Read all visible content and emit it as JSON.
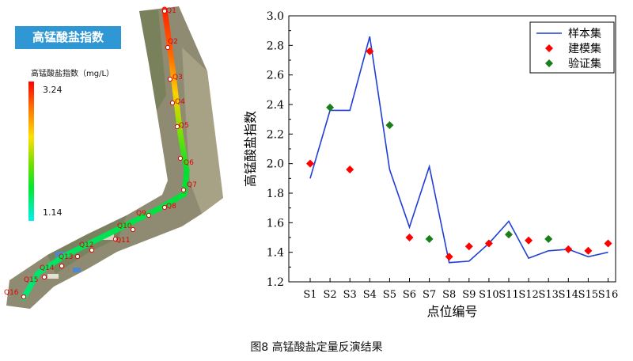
{
  "figure": {
    "caption": "图8  高锰酸盐定量反演结果"
  },
  "map": {
    "title": "高锰酸盐指数",
    "legend_title": "高锰酸盐指数（mg/L）",
    "legend_max": "3.24",
    "legend_min": "1.14",
    "points": [
      "Q1",
      "Q2",
      "Q3",
      "Q4",
      "Q5",
      "Q6",
      "Q7",
      "Q8",
      "Q9",
      "Q10",
      "Q11",
      "Q12",
      "Q13",
      "Q14",
      "Q15",
      "Q16"
    ]
  },
  "chart_data": {
    "type": "line",
    "categories": [
      "S1",
      "S2",
      "S3",
      "S4",
      "S5",
      "S6",
      "S7",
      "S8",
      "S9",
      "S10",
      "S11",
      "S12",
      "S13",
      "S14",
      "S15",
      "S16"
    ],
    "xlabel": "点位编号",
    "ylabel": "高锰酸盐指数",
    "ylim": [
      1.2,
      3.0
    ],
    "yticks": [
      "1.2",
      "1.4",
      "1.6",
      "1.8",
      "2.0",
      "2.2",
      "2.4",
      "2.6",
      "2.8",
      "3.0"
    ],
    "legend_position": "top-right",
    "series": [
      {
        "name": "样本集",
        "kind": "line",
        "color": "#1f3fd6",
        "values": [
          1.9,
          2.36,
          2.36,
          2.86,
          1.96,
          1.57,
          1.98,
          1.33,
          1.34,
          1.46,
          1.61,
          1.36,
          1.41,
          1.42,
          1.37,
          1.4
        ]
      },
      {
        "name": "建模集",
        "kind": "marker",
        "color": "#ff0000",
        "values": [
          2.0,
          null,
          1.96,
          2.76,
          null,
          1.5,
          null,
          1.37,
          1.44,
          1.46,
          null,
          1.48,
          null,
          1.42,
          1.41,
          1.46
        ]
      },
      {
        "name": "验证集",
        "kind": "marker",
        "color": "#1a7f1a",
        "values": [
          null,
          2.38,
          null,
          null,
          2.26,
          null,
          1.49,
          null,
          null,
          null,
          1.52,
          null,
          1.49,
          null,
          null,
          null
        ]
      }
    ]
  }
}
